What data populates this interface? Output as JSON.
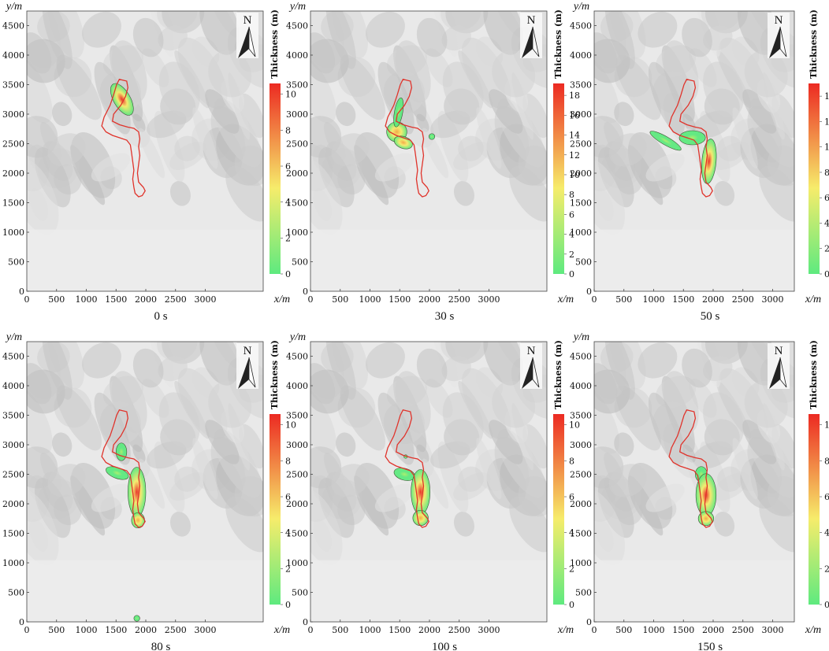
{
  "chart_data": [
    {
      "type": "heatmap",
      "title": "0 s",
      "xlabel": "x/m",
      "ylabel": "y/m",
      "xlim": [
        0,
        3350
      ],
      "ylim": [
        0,
        4750
      ],
      "xticks": [
        0,
        500,
        1000,
        1500,
        2000,
        2500,
        3000
      ],
      "yticks": [
        0,
        500,
        1000,
        1500,
        2000,
        2500,
        3000,
        3500,
        4000,
        4500
      ],
      "colorbar": {
        "label": "Thickness (m)",
        "min": 0,
        "max": 10.6,
        "ticks": [
          0,
          2,
          4,
          6,
          8,
          10
        ]
      },
      "north_label": "N"
    },
    {
      "type": "heatmap",
      "title": "30 s",
      "xlabel": "x/m",
      "ylabel": "y/m",
      "xlim": [
        0,
        3350
      ],
      "ylim": [
        0,
        4750
      ],
      "xticks": [
        0,
        500,
        1000,
        1500,
        2000,
        2500,
        3000
      ],
      "yticks": [
        0,
        500,
        1000,
        1500,
        2000,
        2500,
        3000,
        3500,
        4000,
        4500
      ],
      "colorbar": {
        "label": "Thickness (m)",
        "min": 0,
        "max": 19.2,
        "ticks": [
          0,
          2,
          4,
          6,
          8,
          10,
          12,
          14,
          16,
          18
        ]
      },
      "north_label": "N"
    },
    {
      "type": "heatmap",
      "title": "50 s",
      "xlabel": "x/m",
      "ylabel": "y/m",
      "xlim": [
        0,
        3350
      ],
      "ylim": [
        0,
        4750
      ],
      "xticks": [
        0,
        500,
        1000,
        1500,
        2000,
        2500,
        3000
      ],
      "yticks": [
        0,
        500,
        1000,
        1500,
        2000,
        2500,
        3000,
        3500,
        4000,
        4500
      ],
      "colorbar": {
        "label": "Thickness (m)",
        "min": 0,
        "max": 15,
        "ticks": [
          0,
          2,
          4,
          6,
          8,
          10,
          12,
          14
        ]
      },
      "north_label": "N"
    },
    {
      "type": "heatmap",
      "title": "80 s",
      "xlabel": "x/m",
      "ylabel": "y/m",
      "xlim": [
        0,
        3350
      ],
      "ylim": [
        0,
        4750
      ],
      "xticks": [
        0,
        500,
        1000,
        1500,
        2000,
        2500,
        3000
      ],
      "yticks": [
        0,
        500,
        1000,
        1500,
        2000,
        2500,
        3000,
        3500,
        4000,
        4500
      ],
      "colorbar": {
        "label": "Thickness (m)",
        "min": 0,
        "max": 10.6,
        "ticks": [
          0,
          2,
          4,
          6,
          8,
          10
        ]
      },
      "north_label": "N"
    },
    {
      "type": "heatmap",
      "title": "100 s",
      "xlabel": "x/m",
      "ylabel": "y/m",
      "xlim": [
        0,
        3350
      ],
      "ylim": [
        0,
        4750
      ],
      "xticks": [
        0,
        500,
        1000,
        1500,
        2000,
        2500,
        3000
      ],
      "yticks": [
        0,
        500,
        1000,
        1500,
        2000,
        2500,
        3000,
        3500,
        4000,
        4500
      ],
      "colorbar": {
        "label": "Thickness (m)",
        "min": 0,
        "max": 10.6,
        "ticks": [
          0,
          2,
          4,
          6,
          8,
          10
        ]
      },
      "north_label": "N"
    },
    {
      "type": "heatmap",
      "title": "150 s",
      "xlabel": "x/m",
      "ylabel": "y/m",
      "xlim": [
        0,
        3350
      ],
      "ylim": [
        0,
        4750
      ],
      "xticks": [
        0,
        500,
        1000,
        1500,
        2000,
        2500,
        3000
      ],
      "yticks": [
        0,
        500,
        1000,
        1500,
        2000,
        2500,
        3000,
        3500,
        4000,
        4500
      ],
      "colorbar": {
        "label": "Thickness (m)",
        "min": 0,
        "max": 10.6,
        "ticks": [
          0,
          2,
          4,
          6,
          8,
          10
        ]
      },
      "north_label": "N"
    }
  ],
  "boundary_outline": {
    "color": "#e0332b",
    "points": [
      [
        1555,
        3590
      ],
      [
        1680,
        3560
      ],
      [
        1700,
        3450
      ],
      [
        1660,
        3300
      ],
      [
        1580,
        3150
      ],
      [
        1460,
        3000
      ],
      [
        1440,
        2880
      ],
      [
        1560,
        2820
      ],
      [
        1700,
        2780
      ],
      [
        1800,
        2760
      ],
      [
        1880,
        2700
      ],
      [
        1900,
        2580
      ],
      [
        1880,
        2450
      ],
      [
        1900,
        2300
      ],
      [
        1880,
        2150
      ],
      [
        1860,
        2000
      ],
      [
        1880,
        1850
      ],
      [
        1960,
        1760
      ],
      [
        1990,
        1700
      ],
      [
        1940,
        1620
      ],
      [
        1880,
        1600
      ],
      [
        1820,
        1660
      ],
      [
        1800,
        1760
      ],
      [
        1780,
        1900
      ],
      [
        1800,
        2050
      ],
      [
        1780,
        2200
      ],
      [
        1760,
        2350
      ],
      [
        1740,
        2480
      ],
      [
        1680,
        2560
      ],
      [
        1560,
        2600
      ],
      [
        1440,
        2640
      ],
      [
        1330,
        2700
      ],
      [
        1260,
        2800
      ],
      [
        1300,
        2950
      ],
      [
        1400,
        3150
      ],
      [
        1460,
        3330
      ],
      [
        1510,
        3500
      ]
    ]
  },
  "flow_masses": [
    {
      "panel": 0,
      "blobs": [
        {
          "cx": 1600,
          "cy": 3250,
          "rx": 140,
          "ry": 300,
          "rot": -30,
          "peak": 10.6
        }
      ]
    },
    {
      "panel": 1,
      "blobs": [
        {
          "cx": 1450,
          "cy": 2700,
          "rx": 170,
          "ry": 170,
          "rot": 0,
          "peak": 10
        },
        {
          "cx": 1560,
          "cy": 2520,
          "rx": 160,
          "ry": 100,
          "rot": 20,
          "peak": 13
        },
        {
          "cx": 1480,
          "cy": 3030,
          "rx": 70,
          "ry": 250,
          "rot": 10,
          "peak": 3
        },
        {
          "cx": 2040,
          "cy": 2620,
          "rx": 50,
          "ry": 50,
          "rot": 0,
          "peak": 2
        }
      ]
    },
    {
      "panel": 2,
      "blobs": [
        {
          "cx": 1200,
          "cy": 2550,
          "rx": 300,
          "ry": 70,
          "rot": 30,
          "peak": 3
        },
        {
          "cx": 1650,
          "cy": 2600,
          "rx": 220,
          "ry": 120,
          "rot": 0,
          "peak": 4
        },
        {
          "cx": 1930,
          "cy": 2200,
          "rx": 120,
          "ry": 380,
          "rot": 5,
          "peak": 14
        }
      ]
    },
    {
      "panel": 3,
      "blobs": [
        {
          "cx": 1590,
          "cy": 2880,
          "rx": 90,
          "ry": 150,
          "rot": 0,
          "peak": 3
        },
        {
          "cx": 1520,
          "cy": 2520,
          "rx": 200,
          "ry": 90,
          "rot": 20,
          "peak": 2
        },
        {
          "cx": 1850,
          "cy": 2200,
          "rx": 150,
          "ry": 420,
          "rot": 0,
          "peak": 10.6
        },
        {
          "cx": 1870,
          "cy": 1720,
          "rx": 110,
          "ry": 130,
          "rot": 0,
          "peak": 6
        },
        {
          "cx": 1850,
          "cy": 60,
          "rx": 50,
          "ry": 50,
          "rot": 0,
          "peak": 2
        }
      ]
    },
    {
      "panel": 4,
      "blobs": [
        {
          "cx": 1580,
          "cy": 2500,
          "rx": 180,
          "ry": 100,
          "rot": 15,
          "peak": 3
        },
        {
          "cx": 1850,
          "cy": 2200,
          "rx": 160,
          "ry": 380,
          "rot": 0,
          "peak": 10.6
        },
        {
          "cx": 1850,
          "cy": 1760,
          "rx": 130,
          "ry": 130,
          "rot": 0,
          "peak": 6
        },
        {
          "cx": 1600,
          "cy": 2800,
          "rx": 30,
          "ry": 30,
          "rot": 0,
          "peak": 1
        }
      ]
    },
    {
      "panel": 5,
      "blobs": [
        {
          "cx": 1800,
          "cy": 2500,
          "rx": 100,
          "ry": 130,
          "rot": 0,
          "peak": 3
        },
        {
          "cx": 1880,
          "cy": 2150,
          "rx": 170,
          "ry": 360,
          "rot": 0,
          "peak": 10.6
        },
        {
          "cx": 1880,
          "cy": 1750,
          "rx": 130,
          "ry": 120,
          "rot": 0,
          "peak": 6
        }
      ]
    }
  ],
  "colors": {
    "low": "#5eea7f",
    "mid": "#f6ec6b",
    "high": "#ec2a22",
    "outline": "#e0332b"
  }
}
